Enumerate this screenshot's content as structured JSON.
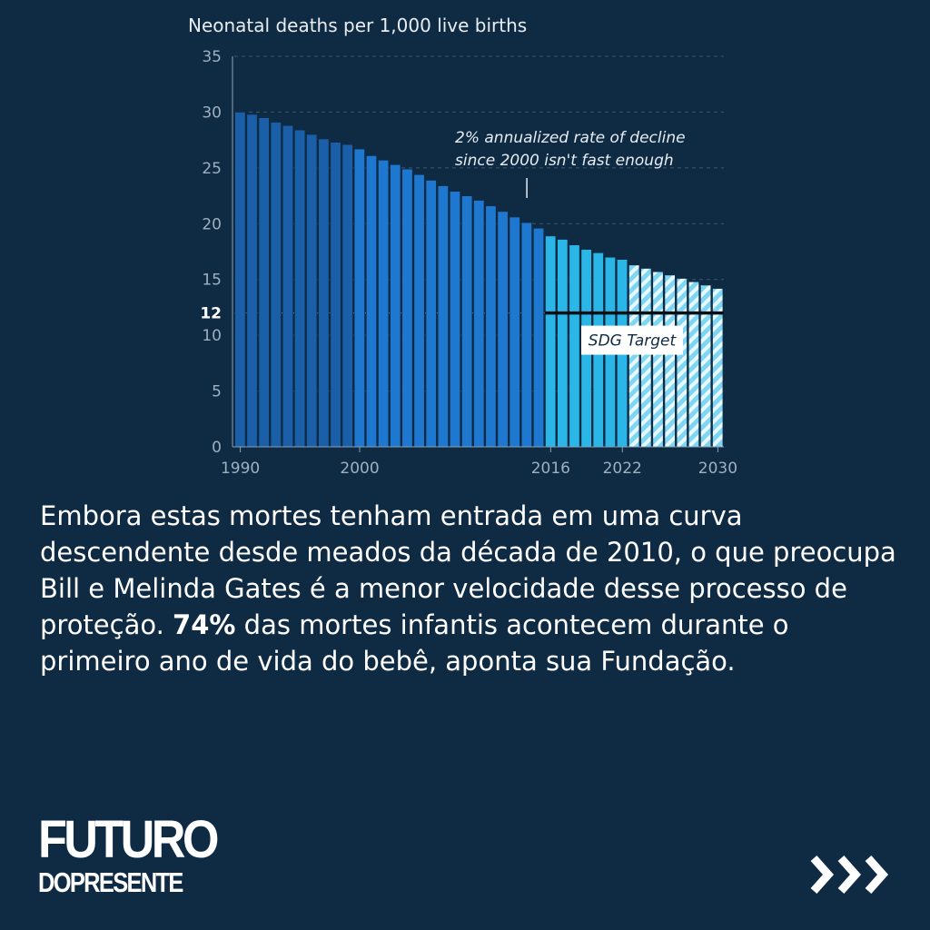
{
  "chart_data": {
    "type": "bar",
    "title": "Neonatal deaths per 1,000 live births",
    "ylim": [
      0,
      35
    ],
    "yticks": [
      0,
      5,
      10,
      15,
      20,
      25,
      30,
      35
    ],
    "highlight_tick": 12,
    "x_tick_labels": [
      "1990",
      "2000",
      "2016",
      "2022",
      "2030"
    ],
    "series": [
      {
        "name": "historical",
        "x": [
          1990,
          1991,
          1992,
          1993,
          1994,
          1995,
          1996,
          1997,
          1998,
          1999,
          2000,
          2001,
          2002,
          2003,
          2004,
          2005,
          2006,
          2007,
          2008,
          2009,
          2010,
          2011,
          2012,
          2013,
          2014,
          2015,
          2016,
          2017,
          2018,
          2019,
          2020,
          2021,
          2022
        ],
        "values": [
          30.0,
          29.8,
          29.5,
          29.1,
          28.8,
          28.4,
          28.0,
          27.6,
          27.3,
          27.1,
          26.7,
          26.1,
          25.7,
          25.3,
          24.9,
          24.4,
          23.9,
          23.4,
          22.9,
          22.5,
          22.1,
          21.6,
          21.1,
          20.6,
          20.1,
          19.6,
          18.9,
          18.6,
          18.1,
          17.7,
          17.4,
          17.0,
          16.8
        ]
      },
      {
        "name": "projection",
        "x": [
          2023,
          2024,
          2025,
          2026,
          2027,
          2028,
          2029,
          2030
        ],
        "values": [
          16.3,
          16.0,
          15.7,
          15.4,
          15.1,
          14.8,
          14.5,
          14.2
        ]
      }
    ],
    "period_colors": {
      "1990-1999": "#1a5fa8",
      "2000-2015": "#1f78cf",
      "2016-2022": "#2ab7e8",
      "2023-2030": "#7fd6f2"
    },
    "sdg_target": {
      "value": 12,
      "from": 2016,
      "to": 2030,
      "label": "SDG Target"
    },
    "annotation": {
      "lines": [
        "2% annualized rate of decline",
        "since 2000 isn't fast enough"
      ],
      "points_to": 2014
    }
  },
  "paragraph": {
    "part1": "Embora estas mortes tenham entrada em uma curva descendente desde meados da década de 2010, o que preocupa Bill e Melinda Gates é a menor velocidade desse processo de proteção. ",
    "highlight": "74%",
    "part2": " das mortes infantis acontecem durante o primeiro ano de vida do bebê, aponta sua Fundação."
  },
  "logo": {
    "line1": "FUTURO",
    "line2": "DOPRESENTE"
  },
  "next_icon": "triple-chevron-right-icon",
  "colors": {
    "background": "#0f2b44",
    "text": "#ffffff"
  }
}
